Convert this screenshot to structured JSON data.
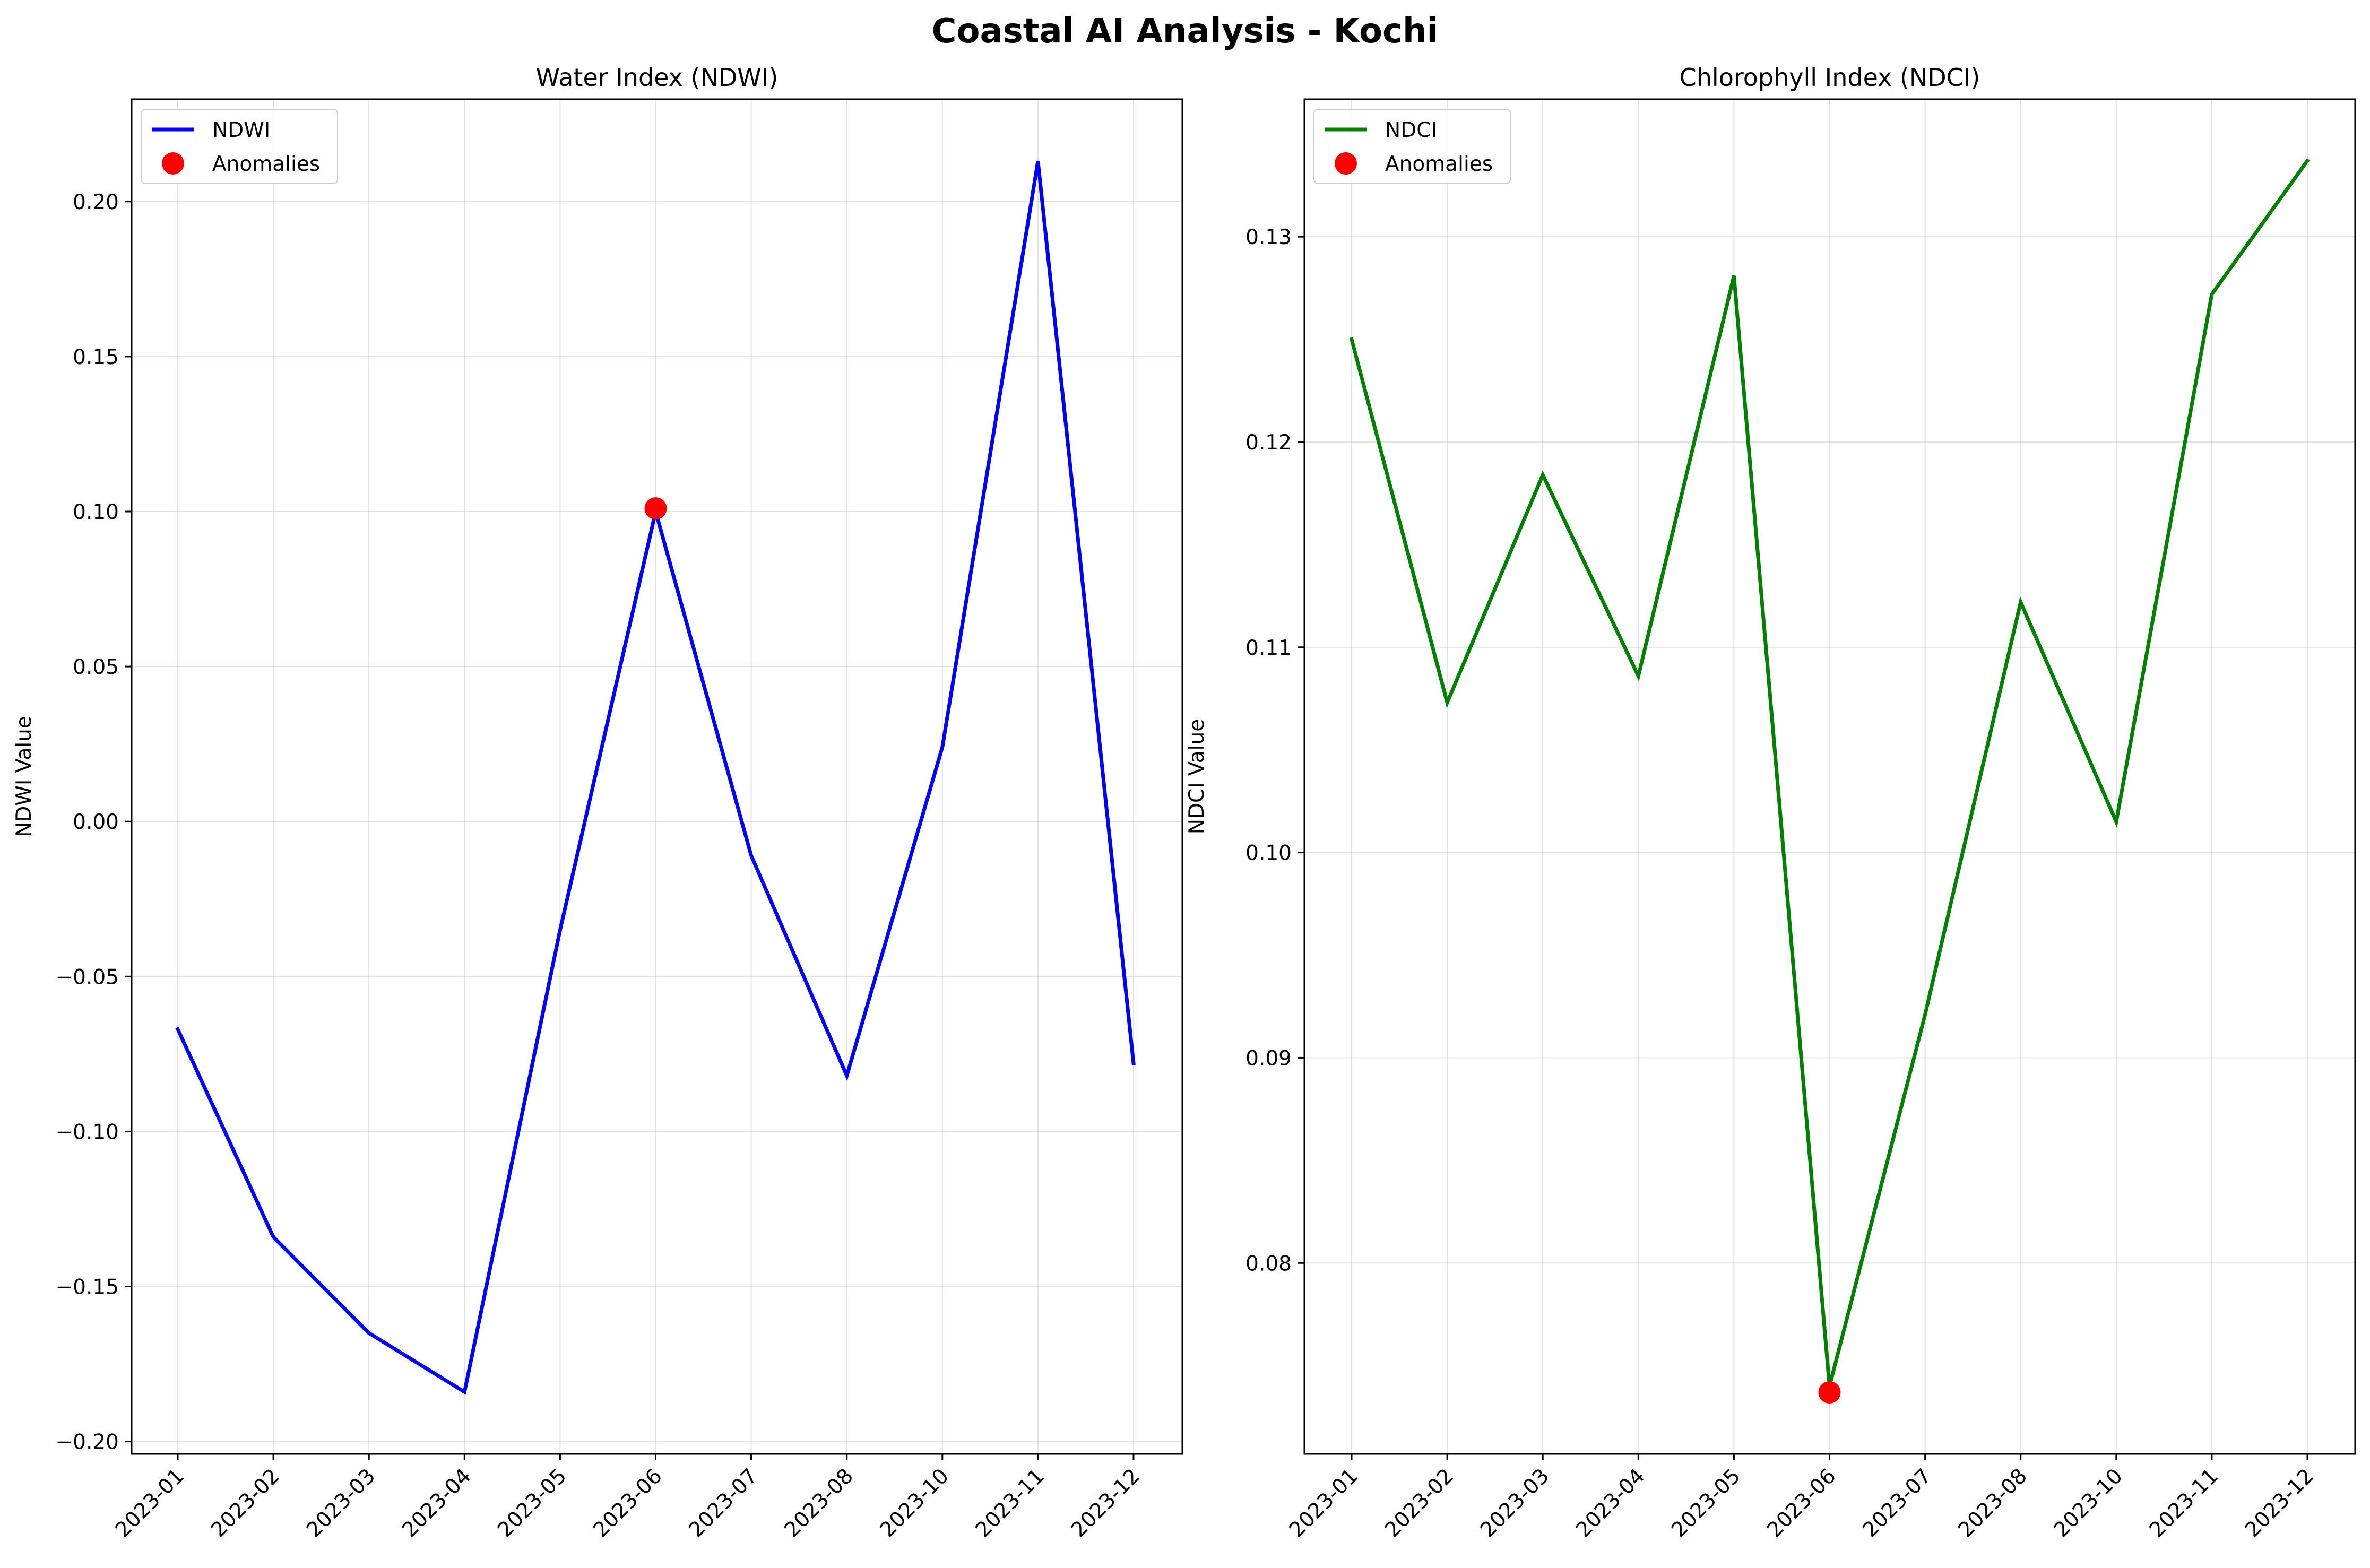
{
  "figure": {
    "title": "Coastal AI Analysis - Kochi"
  },
  "chart_data": [
    {
      "type": "line",
      "title": "Water Index (NDWI)",
      "xlabel": "",
      "ylabel": "NDWI Value",
      "x": [
        "2023-01",
        "2023-02",
        "2023-03",
        "2023-04",
        "2023-05",
        "2023-06",
        "2023-07",
        "2023-08",
        "2023-10",
        "2023-11",
        "2023-12"
      ],
      "series": [
        {
          "name": "NDWI",
          "color": "#0000ff",
          "values": [
            -0.067,
            -0.134,
            -0.165,
            -0.184,
            -0.035,
            0.1,
            -0.011,
            -0.082,
            0.024,
            0.213,
            -0.078
          ]
        }
      ],
      "anomalies": {
        "name": "Anomalies",
        "color": "#ff0000",
        "points": [
          {
            "x": "2023-06",
            "y": 0.101
          }
        ]
      },
      "ylim": [
        -0.204,
        0.233
      ],
      "yticks": [
        -0.2,
        -0.15,
        -0.1,
        -0.05,
        0.0,
        0.05,
        0.1,
        0.15,
        0.2
      ],
      "ytick_labels": [
        "−0.20",
        "−0.15",
        "−0.10",
        "−0.05",
        "0.00",
        "0.05",
        "0.10",
        "0.15",
        "0.20"
      ],
      "grid": true,
      "legend": "top-left"
    },
    {
      "type": "line",
      "title": "Chlorophyll Index (NDCI)",
      "xlabel": "",
      "ylabel": "NDCI Value",
      "x": [
        "2023-01",
        "2023-02",
        "2023-03",
        "2023-04",
        "2023-05",
        "2023-06",
        "2023-07",
        "2023-08",
        "2023-10",
        "2023-11",
        "2023-12"
      ],
      "series": [
        {
          "name": "NDCI",
          "color": "#008000",
          "values": [
            0.125,
            0.1073,
            0.1184,
            0.1086,
            0.1281,
            0.074,
            0.0921,
            0.1122,
            0.1015,
            0.1272,
            0.1337
          ]
        }
      ],
      "anomalies": {
        "name": "Anomalies",
        "color": "#ff0000",
        "points": [
          {
            "x": "2023-06",
            "y": 0.0737
          }
        ]
      },
      "ylim": [
        0.0707,
        0.1367
      ],
      "yticks": [
        0.08,
        0.09,
        0.1,
        0.11,
        0.12,
        0.13
      ],
      "ytick_labels": [
        "0.08",
        "0.09",
        "0.10",
        "0.11",
        "0.12",
        "0.13"
      ],
      "grid": true,
      "legend": "top-left"
    }
  ]
}
